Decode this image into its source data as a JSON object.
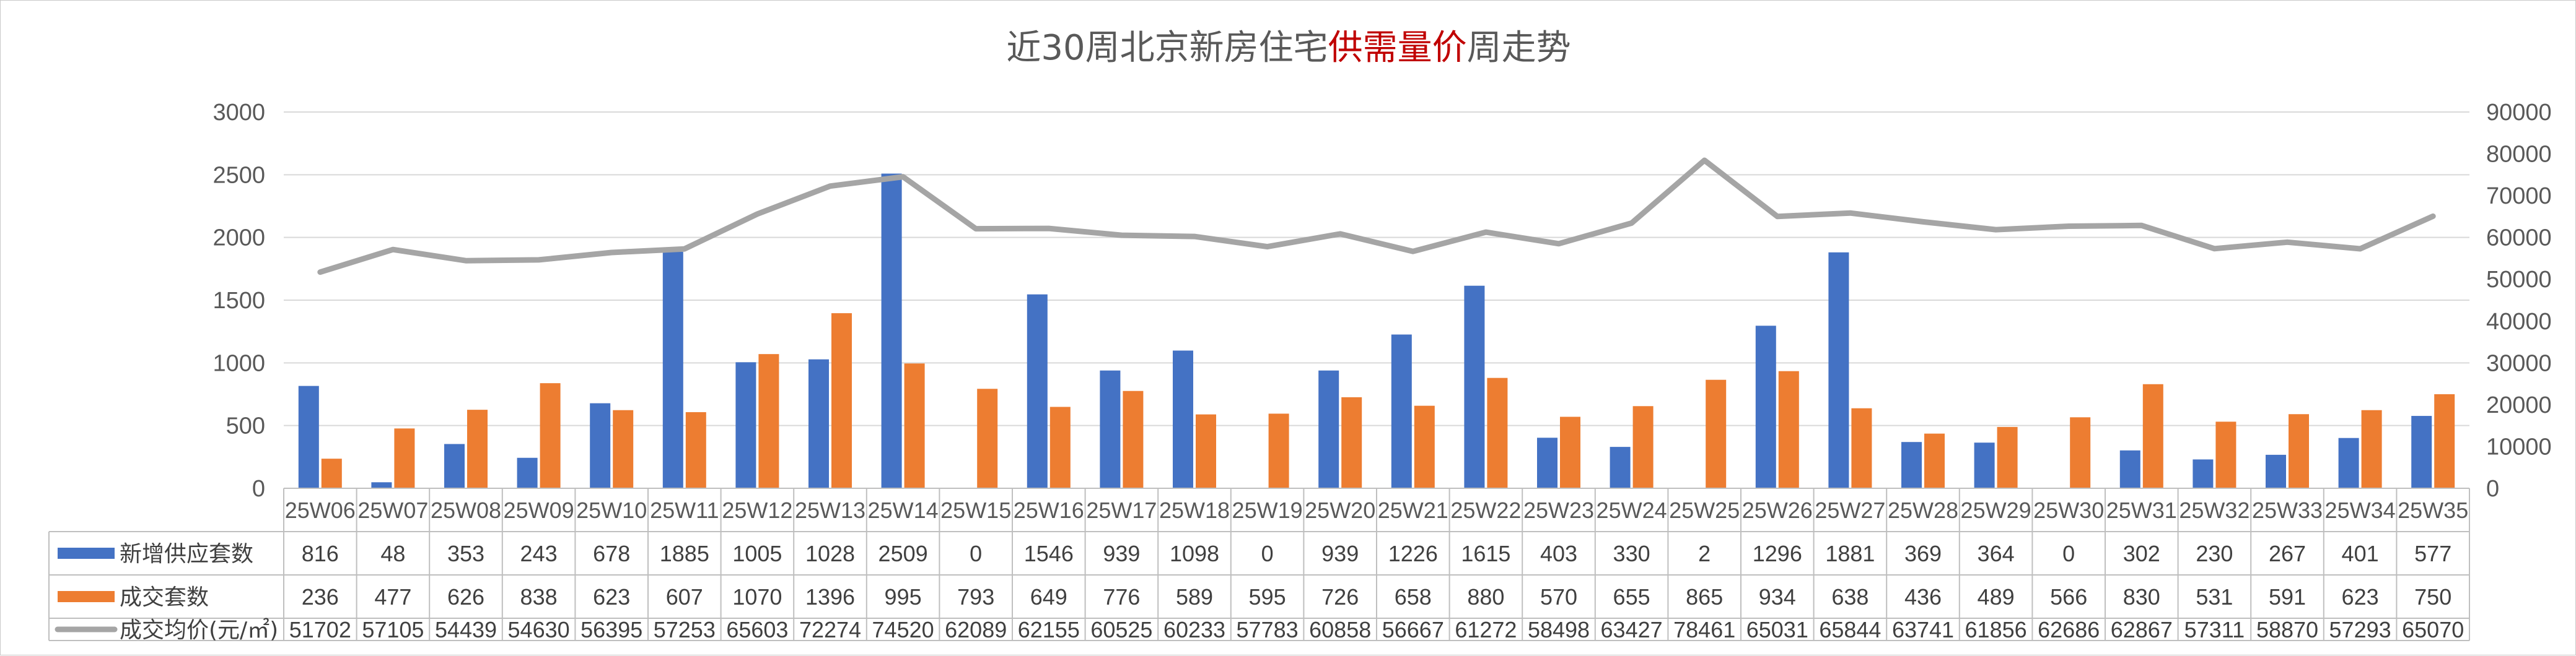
{
  "chart_data": {
    "type": "bar",
    "title_parts": [
      {
        "text": "近30周北京新房住宅",
        "highlight": false
      },
      {
        "text": "供需量价",
        "highlight": true
      },
      {
        "text": "周走势",
        "highlight": false
      }
    ],
    "categories": [
      "25W06",
      "25W07",
      "25W08",
      "25W09",
      "25W10",
      "25W11",
      "25W12",
      "25W13",
      "25W14",
      "25W15",
      "25W16",
      "25W17",
      "25W18",
      "25W19",
      "25W20",
      "25W21",
      "25W22",
      "25W23",
      "25W24",
      "25W25",
      "25W26",
      "25W27",
      "25W28",
      "25W29",
      "25W30",
      "25W31",
      "25W32",
      "25W33",
      "25W34",
      "25W35"
    ],
    "series": [
      {
        "name": "新增供应套数",
        "type": "bar",
        "axis": "left",
        "color": "#4472C4",
        "values": [
          816,
          48,
          353,
          243,
          678,
          1885,
          1005,
          1028,
          2509,
          0,
          1546,
          939,
          1098,
          0,
          939,
          1226,
          1615,
          403,
          330,
          2,
          1296,
          1881,
          369,
          364,
          0,
          302,
          230,
          267,
          401,
          577
        ]
      },
      {
        "name": "成交套数",
        "type": "bar",
        "axis": "left",
        "color": "#ED7D31",
        "values": [
          236,
          477,
          626,
          838,
          623,
          607,
          1070,
          1396,
          995,
          793,
          649,
          776,
          589,
          595,
          726,
          658,
          880,
          570,
          655,
          865,
          934,
          638,
          436,
          489,
          566,
          830,
          531,
          591,
          623,
          750
        ]
      },
      {
        "name": "成交均价(元/㎡)",
        "type": "line",
        "axis": "right",
        "color": "#A5A5A5",
        "values": [
          51702,
          57105,
          54439,
          54630,
          56395,
          57253,
          65603,
          72274,
          74520,
          62089,
          62155,
          60525,
          60233,
          57783,
          60858,
          56667,
          61272,
          58498,
          63427,
          78461,
          65031,
          65844,
          63741,
          61856,
          62686,
          62867,
          57311,
          58870,
          57293,
          65070
        ]
      }
    ],
    "y_left": {
      "min": 0,
      "max": 3000,
      "ticks": [
        0,
        500,
        1000,
        1500,
        2000,
        2500,
        3000
      ]
    },
    "y_right": {
      "min": 0,
      "max": 90000,
      "ticks": [
        0,
        10000,
        20000,
        30000,
        40000,
        50000,
        60000,
        70000,
        80000,
        90000
      ]
    },
    "grid": true,
    "legend": "data-table"
  }
}
